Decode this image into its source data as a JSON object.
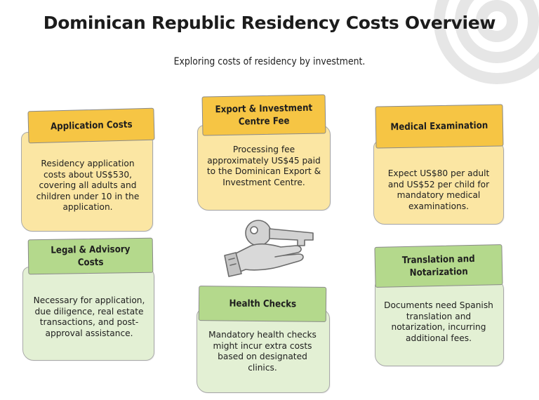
{
  "title": "Dominican Republic Residency Costs Overview",
  "subtitle": "Exploring costs of residency by investment.",
  "cards": [
    {
      "heading": "Application Costs",
      "text": "Residency application costs about US$530, covering all adults and children under 10 in the application.",
      "color": "#f6c544"
    },
    {
      "heading": "Export & Investment Centre Fee",
      "text": "Processing fee approximately US$45 paid to the Dominican Export & Investment Centre.",
      "color": "#f6c544"
    },
    {
      "heading": "Medical Examination",
      "text": "Expect US$80 per adult and US$52 per child for mandatory medical examinations.",
      "color": "#f6c544"
    },
    {
      "heading": "Legal & Advisory Costs",
      "text": "Necessary for application, due diligence, real estate transactions, and post-approval assistance.",
      "color": "#b4d98c"
    },
    {
      "heading": "Health Checks",
      "text": "Mandatory health checks might incur extra costs based on designated clinics.",
      "color": "#b4d98c"
    },
    {
      "heading": "Translation and Notarization",
      "text": "Documents need Spanish translation and notarization, incurring additional fees.",
      "color": "#b4d98c"
    }
  ],
  "icons": {
    "center": "hand-holding-key-icon",
    "decoration": "spiral-swirl-icon"
  }
}
